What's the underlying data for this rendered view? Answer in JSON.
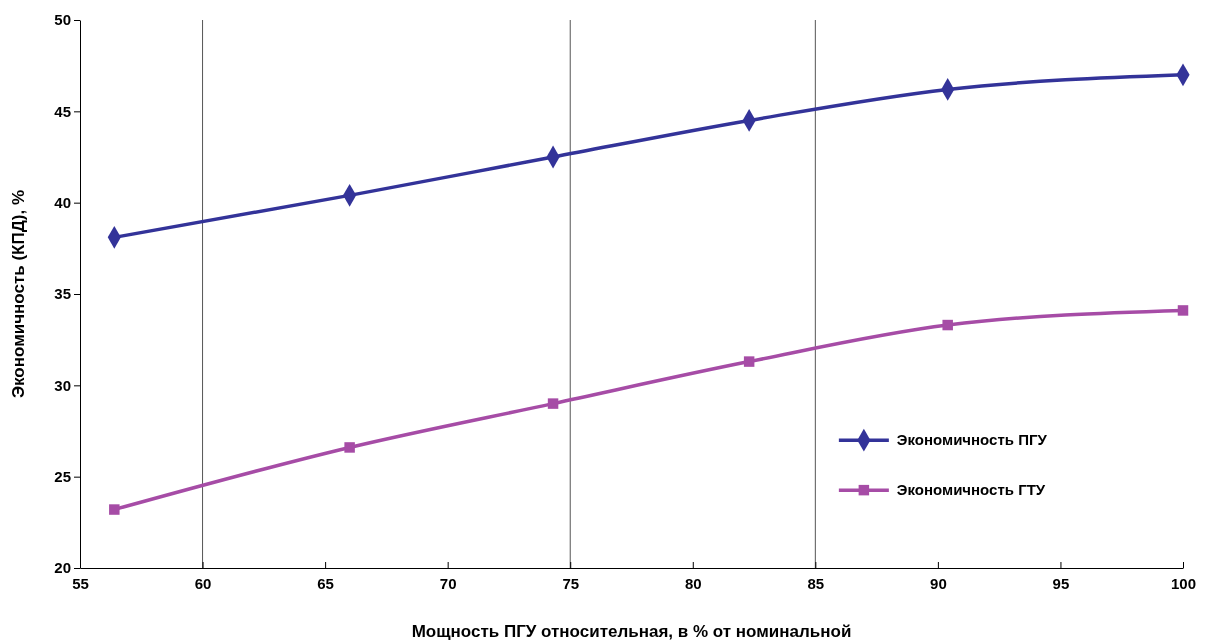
{
  "chart_data": {
    "type": "line",
    "xlabel": "Мощность ПГУ относительная, в % от номинальной",
    "ylabel": "Экономичность (КПД), %",
    "xlim": [
      55,
      100
    ],
    "xticks": [
      55,
      60,
      65,
      70,
      75,
      80,
      85,
      90,
      95,
      100
    ],
    "ylim": [
      20,
      50
    ],
    "yticks": [
      20,
      25,
      30,
      35,
      40,
      45,
      50
    ],
    "series": [
      {
        "name": "Экономичность ПГУ",
        "color": "#333399",
        "marker": "diamond",
        "x": [
          56.4,
          66,
          74.3,
          82.3,
          90.4,
          100
        ],
        "values": [
          38.1,
          40.4,
          42.5,
          44.5,
          46.2,
          47
        ]
      },
      {
        "name": "Экономичность ГТУ",
        "color": "#a64ca6",
        "marker": "square",
        "x": [
          56.4,
          66,
          74.3,
          82.3,
          90.4,
          100
        ],
        "values": [
          23.2,
          26.6,
          29.0,
          31.3,
          33.3,
          34.1
        ]
      }
    ],
    "ref_lines": [
      {
        "axis": "x",
        "value": 60,
        "color": "#555555"
      },
      {
        "axis": "x",
        "value": 75,
        "color": "#555555"
      },
      {
        "axis": "x",
        "value": 85,
        "color": "#555555"
      }
    ],
    "legend": "bottom right",
    "grid": false,
    "line_style": "solid"
  }
}
